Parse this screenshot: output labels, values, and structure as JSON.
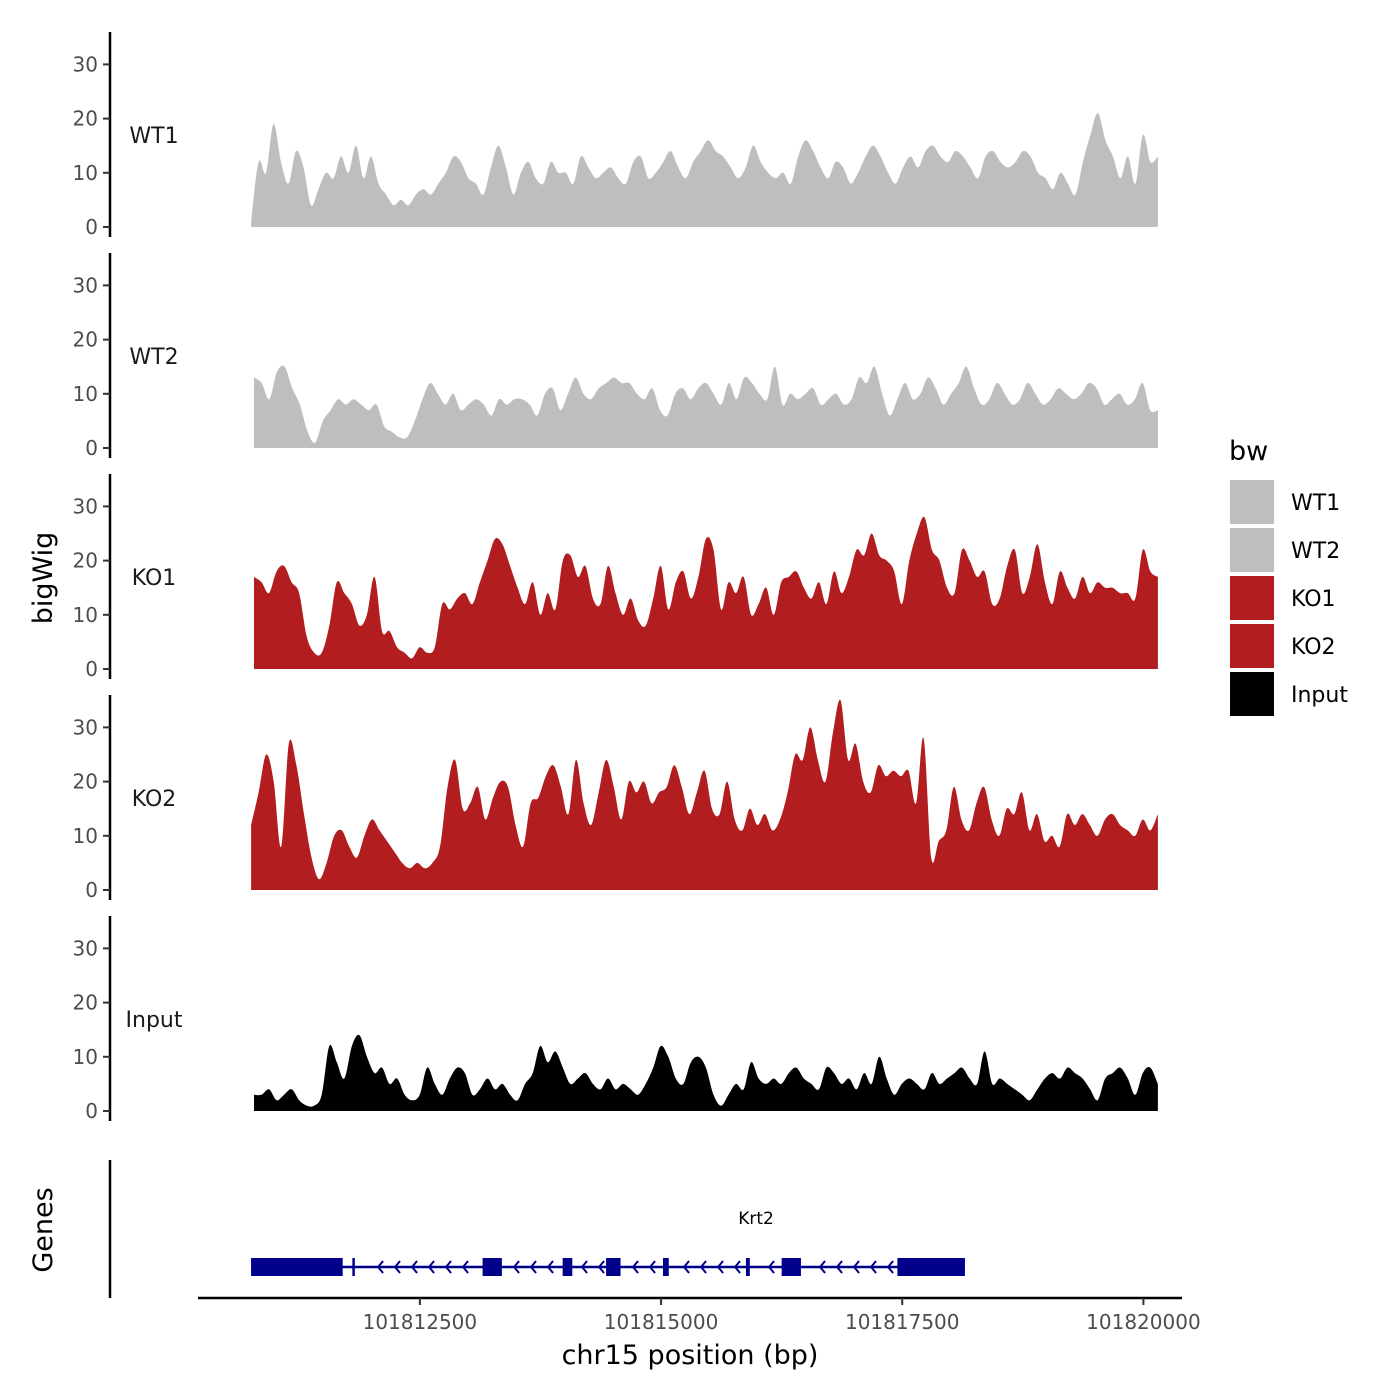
{
  "chart_data": {
    "type": "area",
    "title": "",
    "ylabel": "bigWig",
    "xlabel": "chr15 position (bp)",
    "chromosome": "chr15",
    "xlim": [
      101810200,
      101820400
    ],
    "ylim": [
      0,
      36
    ],
    "yticks": [
      0,
      10,
      20,
      30
    ],
    "xticks": [
      101812500,
      101815000,
      101817500,
      101820000
    ],
    "xtick_labels": [
      "101812500",
      "101815000",
      "101817500",
      "101820000"
    ],
    "genes_label": "Genes",
    "legend": {
      "title": "bw",
      "position": "right",
      "entries": [
        {
          "label": "WT1",
          "color": "#bebebe"
        },
        {
          "label": "WT2",
          "color": "#bebebe"
        },
        {
          "label": "KO1",
          "color": "#b21e20"
        },
        {
          "label": "KO2",
          "color": "#b21e20"
        },
        {
          "label": "Input",
          "color": "#000000"
        }
      ]
    },
    "series": [
      {
        "name": "WT1",
        "color": "#bebebe",
        "start": 101810750,
        "end": 101820150,
        "values": [
          1,
          12,
          10,
          19,
          12,
          8,
          14,
          11,
          4,
          7,
          10,
          9,
          13,
          10,
          15,
          9,
          13,
          8,
          6,
          4,
          5,
          4,
          6,
          7,
          6,
          8,
          10,
          13,
          12,
          9,
          8,
          6,
          11,
          15,
          11,
          6,
          10,
          12,
          9,
          8,
          12,
          10,
          10,
          8,
          13,
          11,
          9,
          10,
          11,
          9,
          8,
          12,
          13,
          9,
          10,
          12,
          14,
          11,
          9,
          12,
          14,
          16,
          14,
          13,
          11,
          9,
          11,
          15,
          12,
          10,
          9,
          10,
          8,
          13,
          16,
          14,
          11,
          9,
          12,
          11,
          8,
          10,
          13,
          15,
          13,
          10,
          8,
          11,
          13,
          11,
          14,
          15,
          13,
          12,
          14,
          13,
          11,
          9,
          13,
          14,
          12,
          11,
          12,
          14,
          13,
          10,
          9,
          7,
          10,
          8,
          6,
          12,
          17,
          21,
          16,
          13,
          9,
          13,
          8,
          17,
          12,
          13
        ]
      },
      {
        "name": "WT2",
        "color": "#bebebe",
        "start": 101810780,
        "end": 101820150,
        "values": [
          13,
          12,
          9,
          14,
          15,
          11,
          8,
          3,
          1,
          5,
          7,
          9,
          8,
          9,
          8,
          7,
          8,
          4,
          3,
          2,
          2,
          5,
          9,
          12,
          10,
          8,
          10,
          7,
          8,
          9,
          8,
          6,
          9,
          8,
          9,
          9,
          8,
          6,
          10,
          11,
          7,
          10,
          13,
          10,
          9,
          11,
          12,
          13,
          12,
          12,
          10,
          9,
          11,
          7,
          6,
          10,
          11,
          9,
          11,
          12,
          10,
          8,
          12,
          9,
          13,
          12,
          10,
          9,
          15,
          8,
          10,
          9,
          10,
          11,
          8,
          9,
          10,
          8,
          9,
          13,
          12,
          15,
          10,
          6,
          9,
          12,
          9,
          10,
          13,
          11,
          8,
          10,
          12,
          15,
          11,
          8,
          9,
          12,
          10,
          8,
          9,
          12,
          10,
          8,
          9,
          11,
          10,
          9,
          10,
          12,
          11,
          8,
          9,
          10,
          8,
          9,
          12,
          7,
          7
        ]
      },
      {
        "name": "KO1",
        "color": "#b21e20",
        "start": 101810780,
        "end": 101820150,
        "values": [
          17,
          16,
          14,
          18,
          19,
          16,
          14,
          6,
          3,
          3,
          8,
          16,
          14,
          12,
          8,
          10,
          17,
          7,
          7,
          4,
          3,
          2,
          4,
          3,
          4,
          12,
          11,
          13,
          14,
          12,
          16,
          20,
          24,
          23,
          19,
          15,
          12,
          16,
          10,
          14,
          11,
          20,
          21,
          17,
          19,
          13,
          12,
          19,
          14,
          10,
          13,
          9,
          8,
          13,
          19,
          11,
          16,
          18,
          13,
          17,
          24,
          22,
          11,
          16,
          14,
          17,
          10,
          12,
          15,
          10,
          16,
          17,
          18,
          15,
          13,
          16,
          12,
          18,
          14,
          17,
          22,
          21,
          25,
          21,
          20,
          18,
          12,
          20,
          25,
          28,
          22,
          20,
          15,
          14,
          22,
          20,
          17,
          18,
          12,
          13,
          19,
          22,
          14,
          17,
          23,
          16,
          12,
          18,
          15,
          13,
          17,
          14,
          16,
          15,
          15,
          14,
          14,
          13,
          22,
          18,
          17
        ]
      },
      {
        "name": "KO2",
        "color": "#b21e20",
        "start": 101810750,
        "end": 101820150,
        "values": [
          12,
          18,
          25,
          20,
          8,
          27,
          23,
          14,
          6,
          2,
          5,
          10,
          11,
          8,
          6,
          10,
          13,
          11,
          9,
          7,
          5,
          4,
          5,
          4,
          5,
          8,
          19,
          24,
          15,
          16,
          19,
          13,
          17,
          20,
          19,
          12,
          8,
          16,
          17,
          21,
          23,
          19,
          14,
          24,
          16,
          12,
          18,
          24,
          19,
          13,
          20,
          18,
          20,
          16,
          18,
          19,
          23,
          19,
          14,
          18,
          22,
          15,
          14,
          20,
          13,
          11,
          15,
          12,
          14,
          11,
          13,
          18,
          25,
          24,
          30,
          24,
          20,
          29,
          35,
          24,
          27,
          20,
          18,
          23,
          21,
          22,
          21,
          22,
          16,
          28,
          6,
          9,
          11,
          19,
          13,
          11,
          16,
          19,
          13,
          10,
          15,
          14,
          18,
          11,
          14,
          9,
          10,
          8,
          14,
          12,
          14,
          12,
          10,
          13,
          14,
          12,
          11,
          10,
          13,
          11,
          14
        ]
      },
      {
        "name": "Input",
        "color": "#000000",
        "start": 101810780,
        "end": 101820150,
        "values": [
          3,
          3,
          4,
          2,
          3,
          4,
          2,
          1,
          1,
          3,
          12,
          9,
          6,
          12,
          14,
          10,
          7,
          8,
          5,
          6,
          3,
          2,
          3,
          8,
          5,
          3,
          6,
          8,
          7,
          3,
          4,
          6,
          4,
          5,
          3,
          2,
          5,
          7,
          12,
          9,
          11,
          8,
          5,
          6,
          7,
          5,
          4,
          6,
          4,
          5,
          4,
          3,
          5,
          8,
          12,
          10,
          6,
          5,
          9,
          10,
          8,
          3,
          1,
          3,
          5,
          4,
          9,
          6,
          5,
          6,
          5,
          7,
          8,
          6,
          5,
          4,
          8,
          7,
          5,
          6,
          4,
          7,
          5,
          10,
          6,
          3,
          5,
          6,
          5,
          4,
          7,
          5,
          6,
          7,
          8,
          6,
          5,
          11,
          5,
          6,
          5,
          4,
          3,
          2,
          4,
          6,
          7,
          6,
          8,
          7,
          6,
          4,
          2,
          6,
          7,
          8,
          6,
          3,
          7,
          8,
          5
        ]
      }
    ],
    "genes": [
      {
        "name": "Krt2",
        "strand": "-",
        "start": 101810750,
        "end": 101818150,
        "exons": [
          [
            101810750,
            101811700
          ],
          [
            101811800,
            101811820
          ],
          [
            101813150,
            101813350
          ],
          [
            101813980,
            101814080
          ],
          [
            101814430,
            101814580
          ],
          [
            101815020,
            101815080
          ],
          [
            101815880,
            101815920
          ],
          [
            101816250,
            101816450
          ],
          [
            101817450,
            101818150
          ]
        ]
      }
    ]
  }
}
